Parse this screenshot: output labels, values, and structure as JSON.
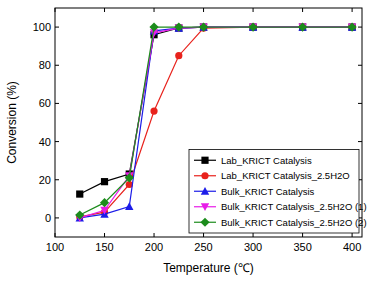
{
  "chart_data": {
    "type": "line",
    "x_label": "Temperature (℃)",
    "y_label": "Conversion (%)",
    "x": [
      125,
      150,
      175,
      200,
      225,
      250,
      300,
      350,
      400
    ],
    "xlim": [
      100,
      410
    ],
    "xticks": [
      100,
      150,
      200,
      250,
      300,
      350,
      400
    ],
    "ylim": [
      -10,
      110
    ],
    "yticks": [
      0,
      20,
      40,
      60,
      80,
      100
    ],
    "grid": false,
    "legend": "lower right",
    "series": [
      {
        "name": "Lab_KRICT Catalysis",
        "color": "#000000",
        "marker": "square",
        "line_style": "solid",
        "values": [
          12.5,
          19,
          23,
          96,
          99.5,
          100,
          100,
          100,
          100
        ]
      },
      {
        "name": "Lab_KRICT Catalysis_2.5H2O",
        "color": "#e8221c",
        "marker": "circle",
        "line_style": "solid",
        "values": [
          0.5,
          3,
          17.5,
          56,
          85,
          99.5,
          100,
          100,
          100
        ]
      },
      {
        "name": "Bulk_KRICT Catalysis",
        "color": "#1c1ce8",
        "marker": "triangle",
        "line_style": "solid",
        "values": [
          0,
          2,
          6,
          98,
          99.5,
          100,
          100,
          100,
          100
        ]
      },
      {
        "name": "Bulk_KRICT Catalysis_2.5H2O (1)",
        "color": "#e81ce8",
        "marker": "triangle-down",
        "line_style": "solid",
        "values": [
          0,
          4,
          22,
          97,
          99.5,
          100,
          100,
          100,
          100
        ]
      },
      {
        "name": "Bulk_KRICT Catalysis_2.5H2O (2)",
        "color": "#1c8c1c",
        "marker": "diamond",
        "line_style": "solid",
        "values": [
          1.5,
          8,
          21,
          100,
          100,
          100,
          100,
          100,
          100
        ]
      }
    ]
  }
}
